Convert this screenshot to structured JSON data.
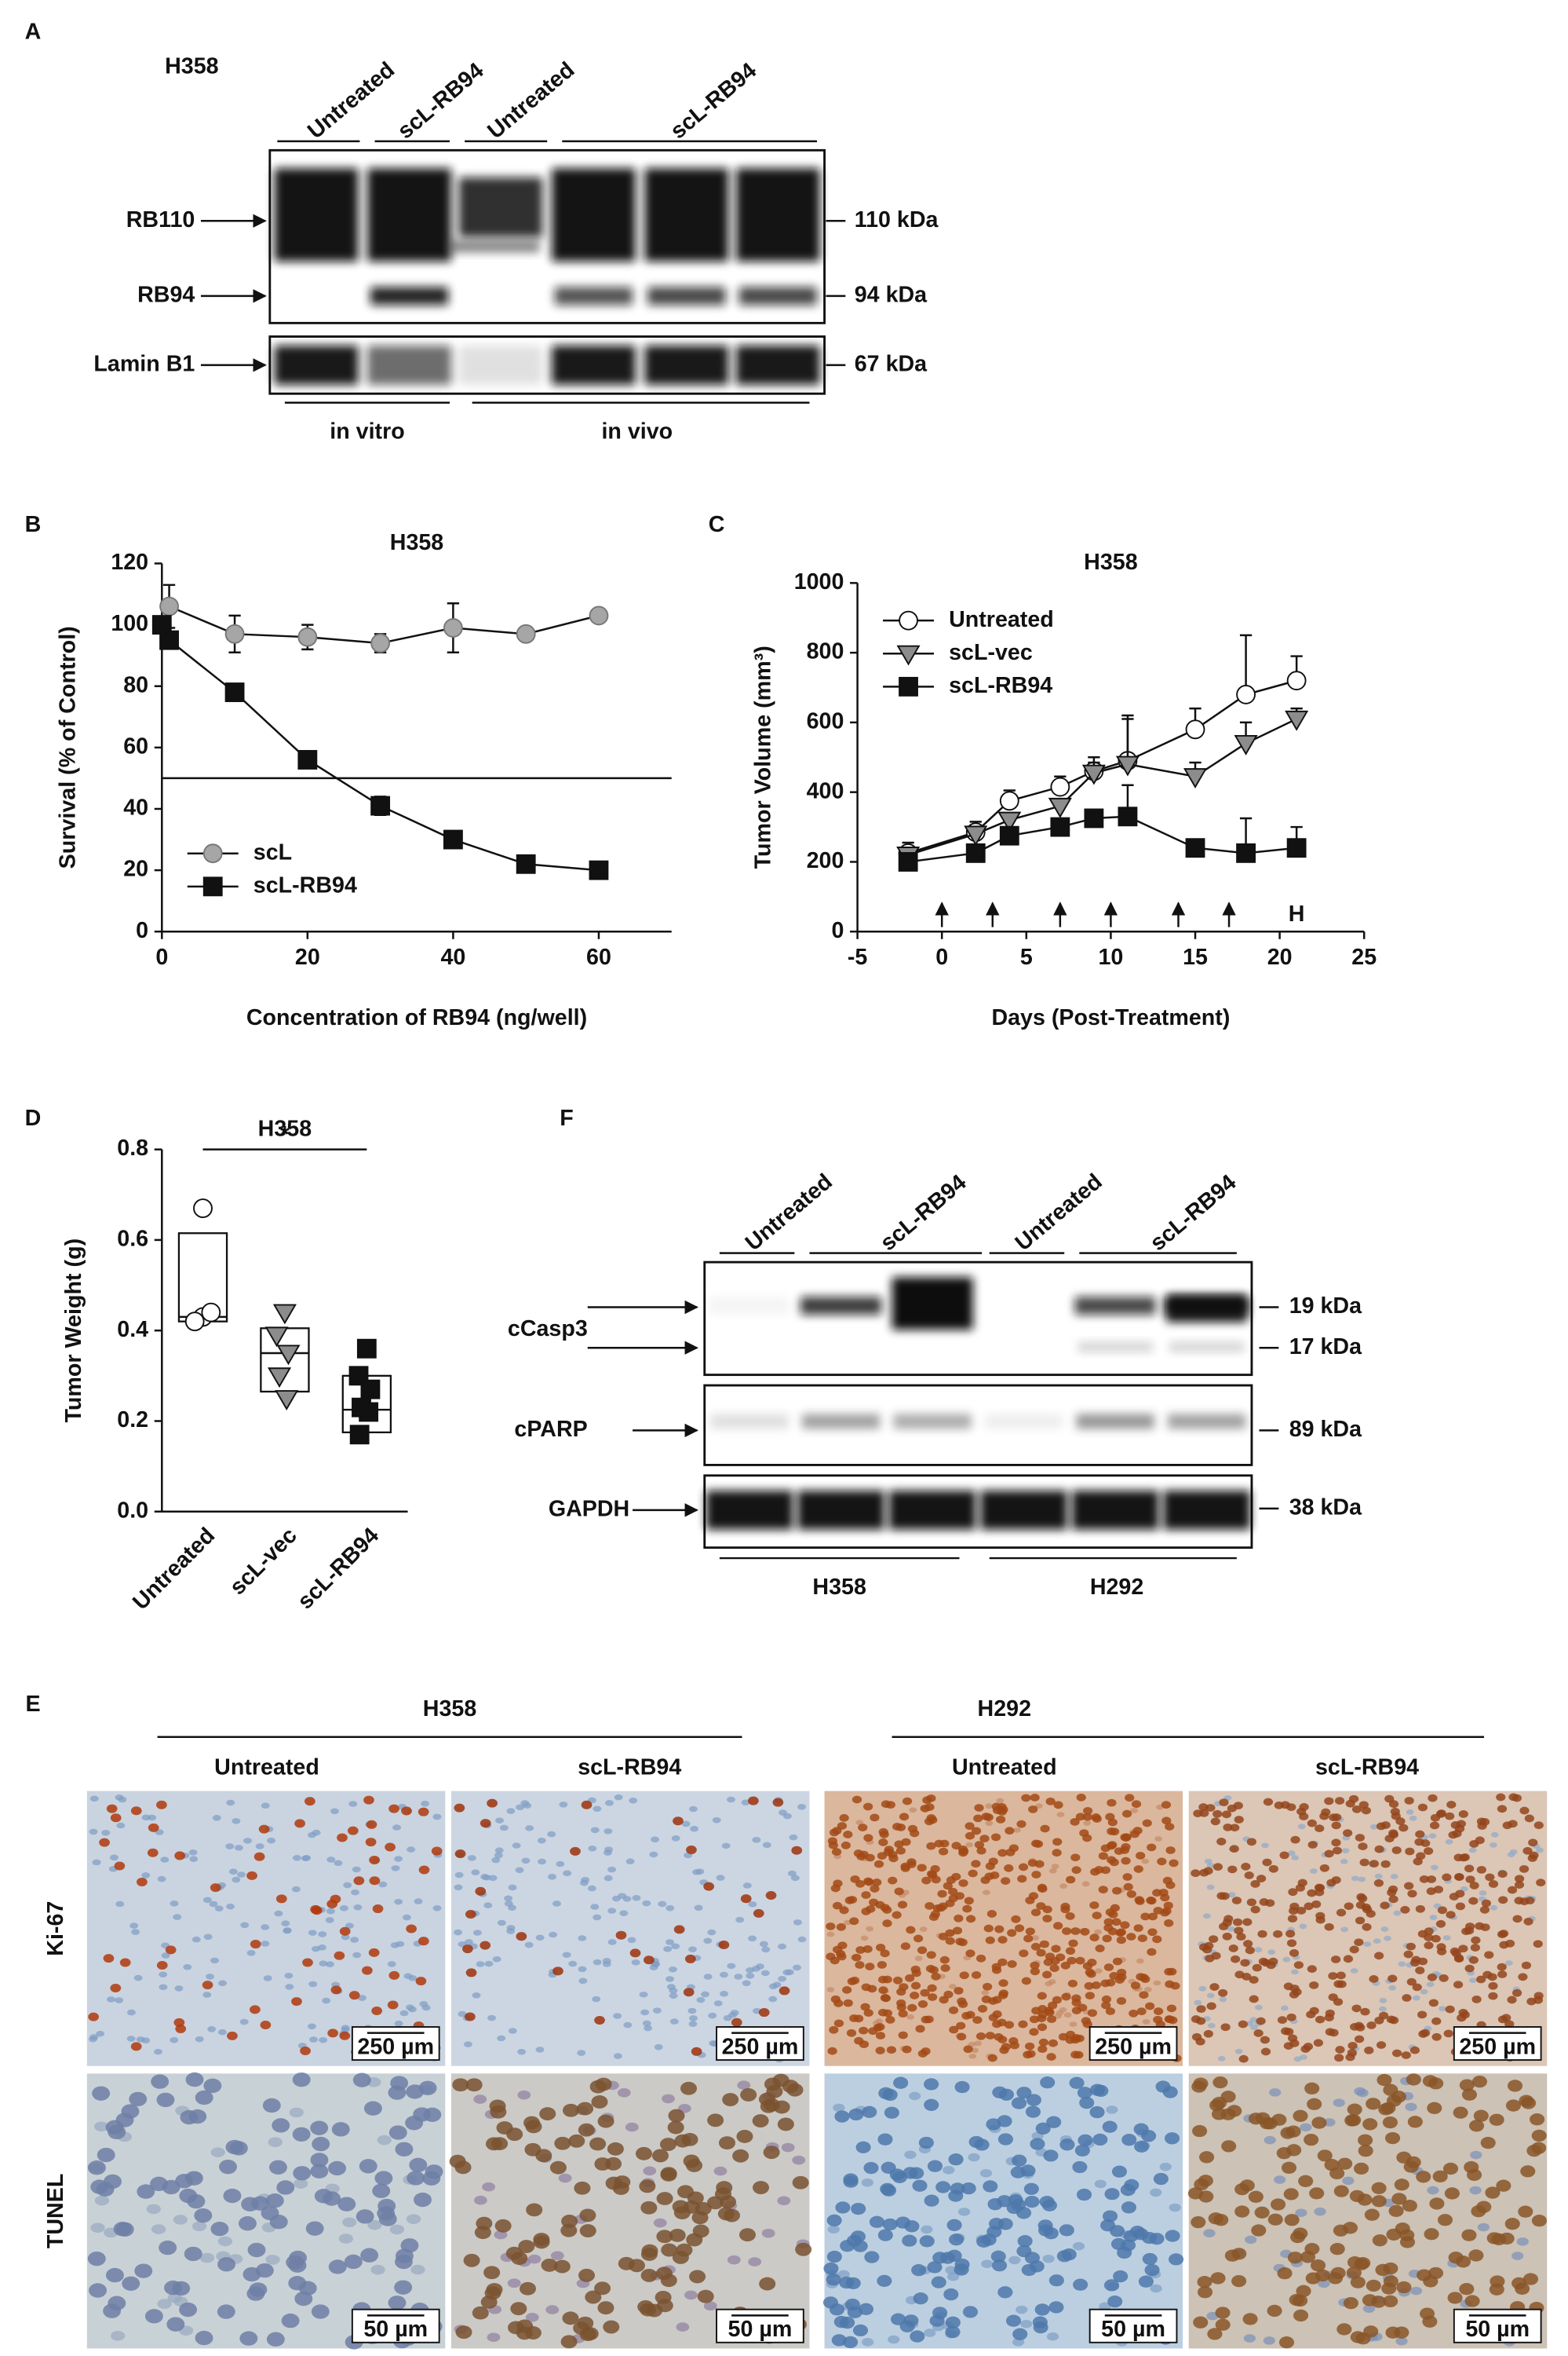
{
  "panel_labels": [
    "A",
    "B",
    "C",
    "D",
    "F",
    "E"
  ],
  "blot_a": {
    "cell_line": "H358",
    "lanes": [
      "Untreated",
      "scL-RB94",
      "Untreated",
      "scL-RB94"
    ],
    "bands": [
      "RB110",
      "RB94",
      "Lamin B1"
    ],
    "sizes": [
      "110 kDa",
      "94 kDa",
      "67 kDa"
    ],
    "groups": [
      "in vitro",
      "in vivo"
    ]
  },
  "blot_f": {
    "lanes": [
      "Untreated",
      "scL-RB94",
      "Untreated",
      "scL-RB94"
    ],
    "bands": [
      "cCasp3",
      "cPARP",
      "GAPDH"
    ],
    "sizes": [
      "19 kDa",
      "17 kDa",
      "89 kDa",
      "38 kDa"
    ],
    "groups": [
      "H358",
      "H292"
    ]
  },
  "panel_e": {
    "cell_lines": [
      "H358",
      "H292"
    ],
    "conditions": [
      "Untreated",
      "scL-RB94",
      "Untreated",
      "scL-RB94"
    ],
    "stains": [
      "Ki-67",
      "TUNEL"
    ],
    "scale_bars": [
      "250 µm",
      "50 µm"
    ]
  },
  "chart_data": [
    {
      "type": "line",
      "title": "H358",
      "x_label": "Concentration of RB94 (ng/well)",
      "y_label": "Survival (% of Control)",
      "xlim": [
        0,
        70
      ],
      "xticks": [
        0,
        20,
        40,
        60
      ],
      "ylim": [
        0,
        120
      ],
      "yticks": [
        0,
        20,
        40,
        60,
        80,
        100,
        120
      ],
      "reference_line": 50,
      "error_bars": "both",
      "legend": "lower left",
      "series": [
        {
          "name": "scL",
          "color": "#a6a6a6",
          "marker": "circle",
          "x": [
            0,
            1,
            10,
            20,
            30,
            40,
            50,
            60
          ],
          "values": [
            100,
            106,
            97,
            96,
            94,
            99,
            97,
            103
          ],
          "errors": [
            0,
            7,
            6,
            4,
            3,
            8,
            2,
            2
          ]
        },
        {
          "name": "scL-RB94",
          "color": "#111111",
          "marker": "square",
          "x": [
            0,
            1,
            10,
            20,
            30,
            40,
            50,
            60
          ],
          "values": [
            100,
            95,
            78,
            56,
            41,
            30,
            22,
            20
          ],
          "errors": [
            0,
            2,
            1,
            1,
            3,
            2,
            1,
            1
          ]
        }
      ]
    },
    {
      "type": "line",
      "title": "H358",
      "x_label": "Days (Post-Treatment)",
      "y_label": "Tumor Volume (mm³)",
      "xlim": [
        -5,
        25
      ],
      "xticks": [
        -5,
        0,
        5,
        10,
        15,
        20,
        25
      ],
      "ylim": [
        0,
        1000
      ],
      "yticks": [
        0,
        200,
        400,
        600,
        800,
        1000
      ],
      "error_bars": "up",
      "legend": "upper left",
      "treatment_days": [
        0,
        3,
        7,
        10,
        14,
        17
      ],
      "harvest_day": 21,
      "harvest_label": "H",
      "series": [
        {
          "name": "Untreated",
          "color": "#ffffff",
          "marker": "circle",
          "x": [
            -2,
            2,
            4,
            7,
            9,
            11,
            15,
            18,
            21
          ],
          "values": [
            225,
            285,
            375,
            415,
            460,
            490,
            580,
            680,
            720
          ],
          "errors": [
            30,
            30,
            30,
            30,
            40,
            130,
            60,
            170,
            70
          ]
        },
        {
          "name": "scL-vec",
          "color": "#8c8c8c",
          "marker": "triangle",
          "x": [
            -2,
            2,
            4,
            7,
            9,
            11,
            15,
            18,
            21
          ],
          "values": [
            220,
            280,
            320,
            360,
            455,
            480,
            445,
            540,
            610
          ],
          "errors": [
            20,
            20,
            20,
            20,
            30,
            130,
            40,
            60,
            30
          ]
        },
        {
          "name": "scL-RB94",
          "color": "#111111",
          "marker": "square",
          "x": [
            -2,
            2,
            4,
            7,
            9,
            11,
            15,
            18,
            21
          ],
          "values": [
            200,
            225,
            275,
            300,
            325,
            330,
            240,
            225,
            240
          ],
          "errors": [
            15,
            15,
            20,
            20,
            20,
            90,
            20,
            100,
            60
          ]
        }
      ]
    },
    {
      "type": "dotbox",
      "title": "H358",
      "y_label": "Tumor Weight (g)",
      "categories": [
        "Untreated",
        "scL-vec",
        "scL-RB94"
      ],
      "ylim": [
        0,
        0.8
      ],
      "yticks": [
        {
          "value": 0,
          "label": "0.0"
        },
        0.2,
        0.4,
        0.6,
        0.8
      ],
      "colors": [
        "#ffffff",
        "#8c8c8c",
        "#111111"
      ],
      "markers": [
        "circle",
        "triangle",
        "square"
      ],
      "values": [
        [
          0.67,
          0.43,
          0.42,
          0.44
        ],
        [
          0.44,
          0.39,
          0.35,
          0.3,
          0.25
        ],
        [
          0.36,
          0.3,
          0.27,
          0.23,
          0.22,
          0.17
        ]
      ],
      "boxes": [
        {
          "low": 0.42,
          "high": 0.615,
          "mid": 0.43
        },
        {
          "low": 0.265,
          "high": 0.405,
          "mid": 0.35
        },
        {
          "low": 0.175,
          "high": 0.3,
          "mid": 0.225
        }
      ],
      "significance": "*"
    }
  ]
}
